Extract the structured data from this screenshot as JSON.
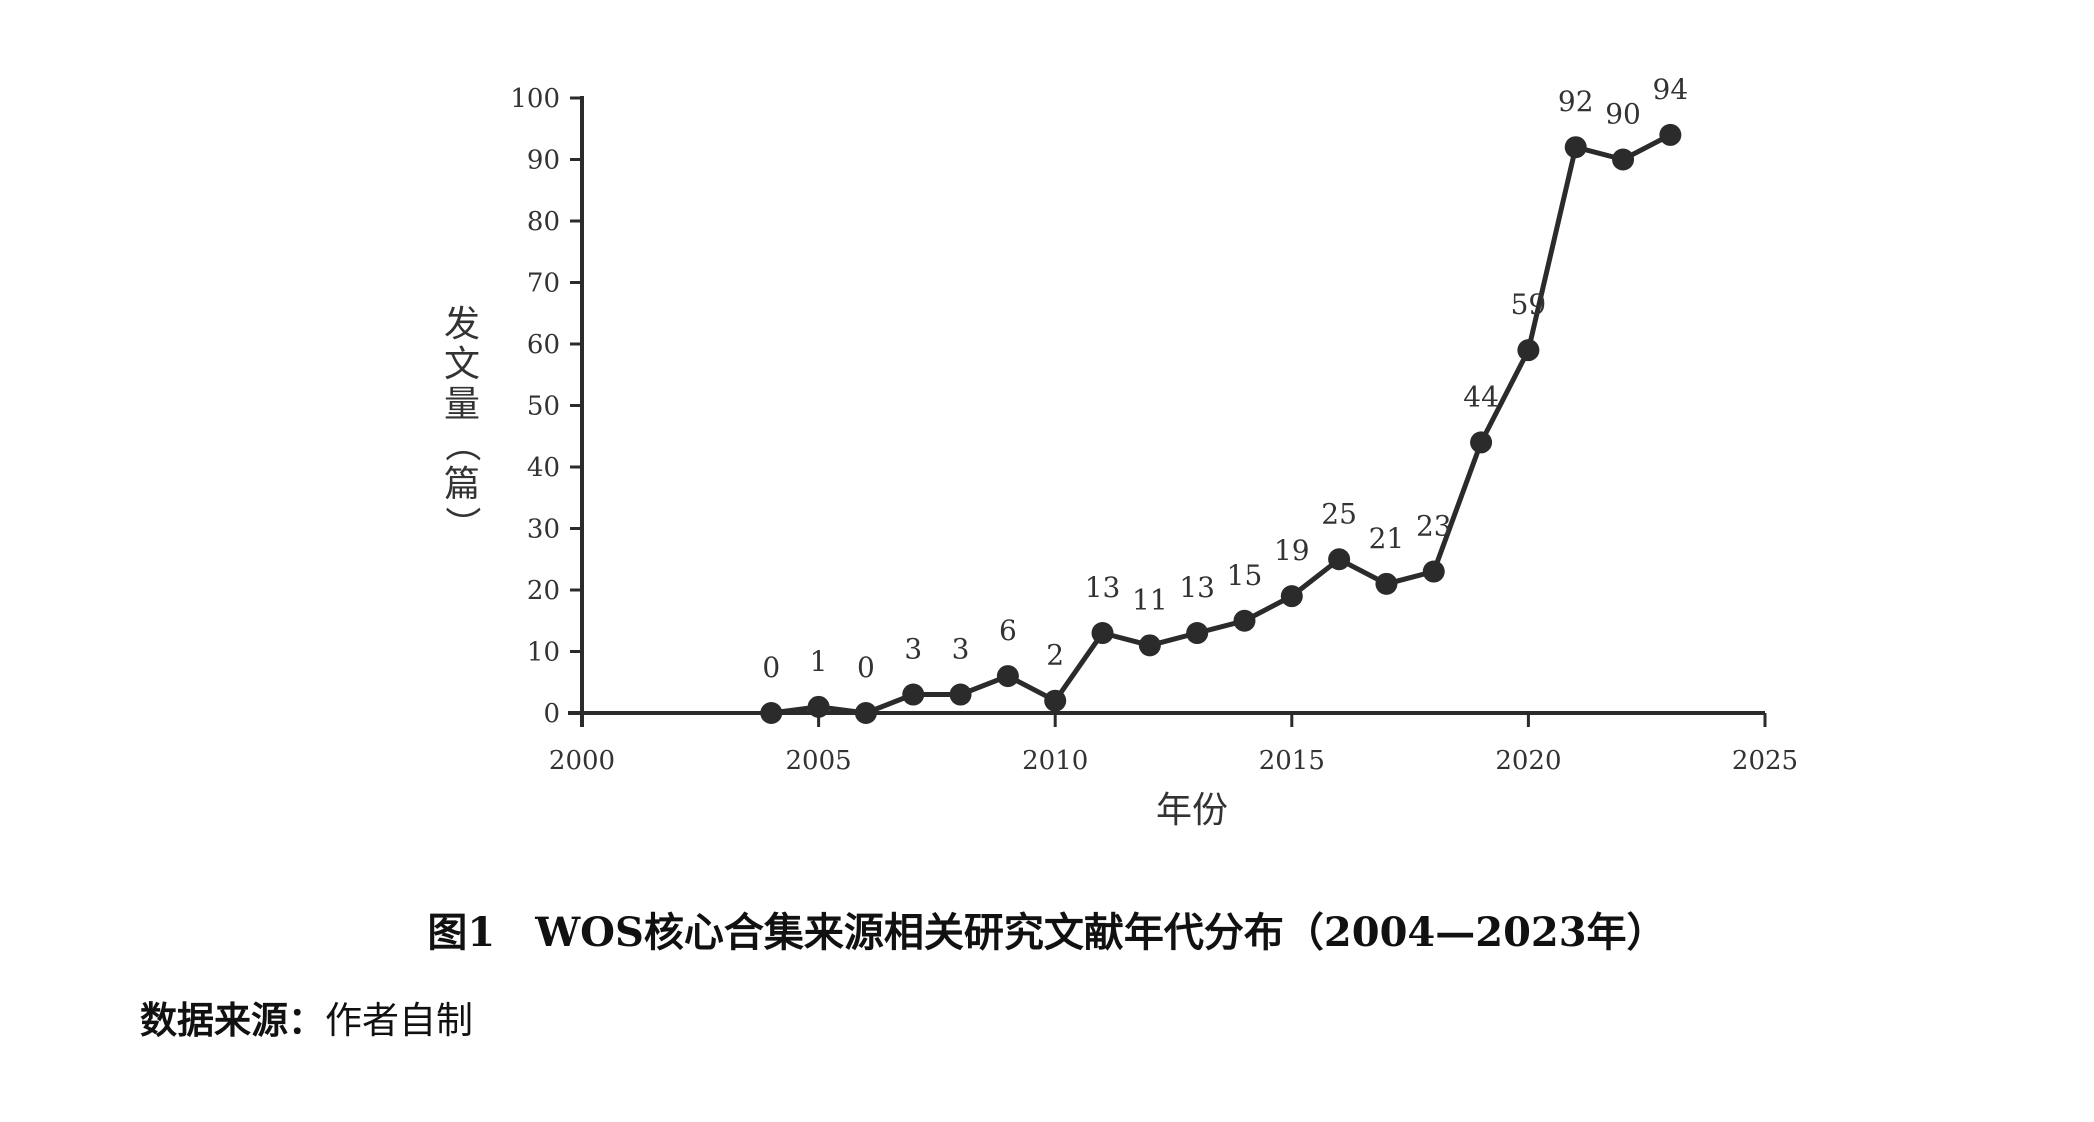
{
  "chart_data": {
    "type": "line",
    "x": [
      2004,
      2005,
      2006,
      2007,
      2008,
      2009,
      2010,
      2011,
      2012,
      2013,
      2014,
      2015,
      2016,
      2017,
      2018,
      2019,
      2020,
      2021,
      2022,
      2023
    ],
    "series": [
      {
        "values": [
          0,
          1,
          0,
          3,
          3,
          6,
          2,
          13,
          11,
          13,
          15,
          19,
          25,
          21,
          23,
          44,
          59,
          92,
          90,
          94
        ]
      }
    ],
    "xlim": [
      2000,
      2025
    ],
    "ylim": [
      0,
      100
    ],
    "xticks": [
      2000,
      2005,
      2010,
      2015,
      2020,
      2025
    ],
    "yticks": [
      0,
      10,
      20,
      30,
      40,
      50,
      60,
      70,
      80,
      90,
      100
    ],
    "xlabel": "年份",
    "ylabel_chars": [
      "发",
      "文",
      "量",
      "（",
      "篇",
      "）"
    ],
    "grid": false,
    "line_color": "#2b2b2b"
  },
  "caption": "图1　WOS核心合集来源相关研究文献年代分布（2004—2023年）",
  "source": {
    "label": "数据来源：",
    "text": "作者自制"
  }
}
